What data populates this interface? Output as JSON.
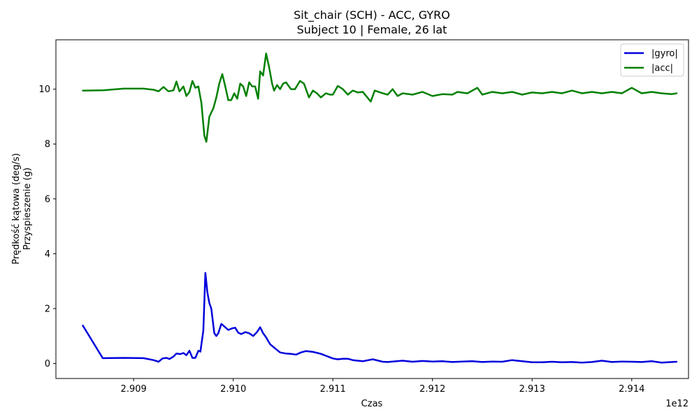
{
  "chart_data": {
    "type": "line",
    "title": "Sit_chair (SCH) - ACC, GYRO",
    "subtitle": "Subject 10 | Female, 26 lat",
    "xlabel": "Czas",
    "ylabel_line1": "Prędkość kątowa (deg/s)",
    "ylabel_line2": "Przyspieszenie (g)",
    "x_offset_label": "1e12",
    "xlim": [
      2.90822,
      2.91457
    ],
    "ylim": [
      -0.55,
      11.8
    ],
    "x_ticks": [
      2.909,
      2.91,
      2.911,
      2.912,
      2.913,
      2.914
    ],
    "x_tick_labels": [
      "2.909",
      "2.910",
      "2.911",
      "2.912",
      "2.913",
      "2.914"
    ],
    "y_ticks": [
      0,
      2,
      4,
      6,
      8,
      10
    ],
    "y_tick_labels": [
      "0",
      "2",
      "4",
      "6",
      "8",
      "10"
    ],
    "grid": false,
    "legend_position": "top-right",
    "series": [
      {
        "name": "|gyro|",
        "color": "#0000dd",
        "points": [
          [
            2.90849,
            1.38
          ],
          [
            2.90869,
            0.19
          ],
          [
            2.9089,
            0.2
          ],
          [
            2.9091,
            0.19
          ],
          [
            2.9092,
            0.12
          ],
          [
            2.90925,
            0.06
          ],
          [
            2.90929,
            0.18
          ],
          [
            2.90933,
            0.2
          ],
          [
            2.90936,
            0.16
          ],
          [
            2.9094,
            0.25
          ],
          [
            2.90943,
            0.36
          ],
          [
            2.90947,
            0.34
          ],
          [
            2.9095,
            0.38
          ],
          [
            2.90953,
            0.3
          ],
          [
            2.90956,
            0.46
          ],
          [
            2.90959,
            0.2
          ],
          [
            2.90962,
            0.2
          ],
          [
            2.90965,
            0.46
          ],
          [
            2.90967,
            0.43
          ],
          [
            2.9097,
            1.2
          ],
          [
            2.90972,
            3.3
          ],
          [
            2.90974,
            2.6
          ],
          [
            2.90976,
            2.2
          ],
          [
            2.90978,
            2.0
          ],
          [
            2.90981,
            1.1
          ],
          [
            2.90983,
            1.0
          ],
          [
            2.90985,
            1.1
          ],
          [
            2.90988,
            1.44
          ],
          [
            2.90991,
            1.35
          ],
          [
            2.90995,
            1.22
          ],
          [
            2.90999,
            1.28
          ],
          [
            2.91002,
            1.3
          ],
          [
            2.91005,
            1.12
          ],
          [
            2.91008,
            1.07
          ],
          [
            2.91012,
            1.14
          ],
          [
            2.91016,
            1.1
          ],
          [
            2.9102,
            1.0
          ],
          [
            2.91024,
            1.15
          ],
          [
            2.91027,
            1.32
          ],
          [
            2.9103,
            1.1
          ],
          [
            2.91033,
            0.95
          ],
          [
            2.91037,
            0.7
          ],
          [
            2.91042,
            0.55
          ],
          [
            2.91047,
            0.4
          ],
          [
            2.91053,
            0.36
          ],
          [
            2.91058,
            0.35
          ],
          [
            2.91063,
            0.32
          ],
          [
            2.91068,
            0.4
          ],
          [
            2.91073,
            0.45
          ],
          [
            2.9108,
            0.42
          ],
          [
            2.91088,
            0.35
          ],
          [
            2.91095,
            0.25
          ],
          [
            2.911,
            0.18
          ],
          [
            2.91105,
            0.15
          ],
          [
            2.9111,
            0.17
          ],
          [
            2.91115,
            0.17
          ],
          [
            2.9112,
            0.12
          ],
          [
            2.91125,
            0.1
          ],
          [
            2.9113,
            0.08
          ],
          [
            2.9114,
            0.15
          ],
          [
            2.9115,
            0.06
          ],
          [
            2.91155,
            0.05
          ],
          [
            2.9117,
            0.1
          ],
          [
            2.9118,
            0.06
          ],
          [
            2.9119,
            0.09
          ],
          [
            2.912,
            0.07
          ],
          [
            2.9121,
            0.08
          ],
          [
            2.9122,
            0.05
          ],
          [
            2.9123,
            0.07
          ],
          [
            2.9124,
            0.08
          ],
          [
            2.9125,
            0.05
          ],
          [
            2.9126,
            0.07
          ],
          [
            2.9127,
            0.06
          ],
          [
            2.9128,
            0.12
          ],
          [
            2.9129,
            0.08
          ],
          [
            2.913,
            0.04
          ],
          [
            2.9131,
            0.04
          ],
          [
            2.9132,
            0.06
          ],
          [
            2.9133,
            0.04
          ],
          [
            2.9134,
            0.05
          ],
          [
            2.9135,
            0.03
          ],
          [
            2.9136,
            0.05
          ],
          [
            2.9137,
            0.1
          ],
          [
            2.9138,
            0.05
          ],
          [
            2.9139,
            0.07
          ],
          [
            2.914,
            0.06
          ],
          [
            2.9141,
            0.05
          ],
          [
            2.9142,
            0.08
          ],
          [
            2.9143,
            0.03
          ],
          [
            2.91445,
            0.06
          ]
        ]
      },
      {
        "name": "|acc|",
        "color": "#008000",
        "points": [
          [
            2.90849,
            9.95
          ],
          [
            2.9087,
            9.96
          ],
          [
            2.9089,
            10.02
          ],
          [
            2.9091,
            10.02
          ],
          [
            2.90915,
            10.0
          ],
          [
            2.9092,
            9.98
          ],
          [
            2.90925,
            9.92
          ],
          [
            2.9093,
            10.08
          ],
          [
            2.90935,
            9.92
          ],
          [
            2.9094,
            9.96
          ],
          [
            2.90943,
            10.28
          ],
          [
            2.90946,
            9.92
          ],
          [
            2.9095,
            10.1
          ],
          [
            2.90953,
            9.75
          ],
          [
            2.90956,
            9.9
          ],
          [
            2.90959,
            10.3
          ],
          [
            2.90962,
            10.05
          ],
          [
            2.90965,
            10.1
          ],
          [
            2.90968,
            9.5
          ],
          [
            2.90971,
            8.3
          ],
          [
            2.90973,
            8.08
          ],
          [
            2.90976,
            9.0
          ],
          [
            2.9098,
            9.3
          ],
          [
            2.90983,
            9.7
          ],
          [
            2.90986,
            10.2
          ],
          [
            2.90989,
            10.55
          ],
          [
            2.90992,
            10.1
          ],
          [
            2.90995,
            9.6
          ],
          [
            2.90998,
            9.6
          ],
          [
            2.91001,
            9.85
          ],
          [
            2.91004,
            9.65
          ],
          [
            2.91007,
            10.2
          ],
          [
            2.9101,
            10.1
          ],
          [
            2.91013,
            9.75
          ],
          [
            2.91016,
            10.25
          ],
          [
            2.91019,
            10.1
          ],
          [
            2.91022,
            10.1
          ],
          [
            2.91025,
            9.65
          ],
          [
            2.91027,
            10.65
          ],
          [
            2.9103,
            10.5
          ],
          [
            2.91033,
            11.3
          ],
          [
            2.91036,
            10.8
          ],
          [
            2.91039,
            10.2
          ],
          [
            2.91041,
            9.95
          ],
          [
            2.91044,
            10.15
          ],
          [
            2.91047,
            10.0
          ],
          [
            2.9105,
            10.2
          ],
          [
            2.91053,
            10.25
          ],
          [
            2.91058,
            10.0
          ],
          [
            2.91062,
            10.0
          ],
          [
            2.91067,
            10.3
          ],
          [
            2.91071,
            10.2
          ],
          [
            2.91076,
            9.7
          ],
          [
            2.9108,
            9.95
          ],
          [
            2.91084,
            9.85
          ],
          [
            2.91088,
            9.7
          ],
          [
            2.91093,
            9.85
          ],
          [
            2.91097,
            9.8
          ],
          [
            2.911,
            9.8
          ],
          [
            2.91105,
            10.12
          ],
          [
            2.9111,
            10.0
          ],
          [
            2.91115,
            9.8
          ],
          [
            2.9112,
            9.95
          ],
          [
            2.91125,
            9.88
          ],
          [
            2.9113,
            9.9
          ],
          [
            2.91138,
            9.55
          ],
          [
            2.91142,
            9.95
          ],
          [
            2.9115,
            9.85
          ],
          [
            2.91155,
            9.8
          ],
          [
            2.9116,
            10.0
          ],
          [
            2.91165,
            9.75
          ],
          [
            2.9117,
            9.85
          ],
          [
            2.9118,
            9.8
          ],
          [
            2.9119,
            9.9
          ],
          [
            2.912,
            9.75
          ],
          [
            2.9121,
            9.82
          ],
          [
            2.9122,
            9.8
          ],
          [
            2.91225,
            9.9
          ],
          [
            2.91235,
            9.85
          ],
          [
            2.91245,
            10.05
          ],
          [
            2.9125,
            9.8
          ],
          [
            2.9126,
            9.9
          ],
          [
            2.9127,
            9.85
          ],
          [
            2.9128,
            9.9
          ],
          [
            2.9129,
            9.8
          ],
          [
            2.913,
            9.88
          ],
          [
            2.9131,
            9.85
          ],
          [
            2.9132,
            9.9
          ],
          [
            2.9133,
            9.85
          ],
          [
            2.9134,
            9.95
          ],
          [
            2.9135,
            9.85
          ],
          [
            2.9136,
            9.9
          ],
          [
            2.9137,
            9.85
          ],
          [
            2.9138,
            9.9
          ],
          [
            2.9139,
            9.85
          ],
          [
            2.914,
            10.05
          ],
          [
            2.9141,
            9.85
          ],
          [
            2.9142,
            9.9
          ],
          [
            2.9143,
            9.85
          ],
          [
            2.9144,
            9.82
          ],
          [
            2.91445,
            9.85
          ]
        ]
      }
    ]
  }
}
